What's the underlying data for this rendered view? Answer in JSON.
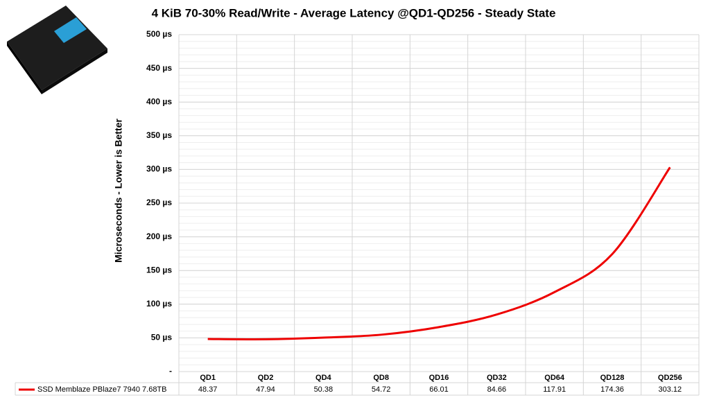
{
  "chart_data": {
    "type": "line",
    "title": "4 KiB 70-30% Read/Write - Average Latency @QD1-QD256 - Steady State",
    "y_label": "Microseconds  -  Lower is Better",
    "categories": [
      "QD1",
      "QD2",
      "QD4",
      "QD8",
      "QD16",
      "QD32",
      "QD64",
      "QD128",
      "QD256"
    ],
    "series": [
      {
        "name": "SSD Memblaze PBlaze7 7940 7.68TB",
        "color": "#ee0000",
        "values": [
          48.37,
          47.94,
          50.38,
          54.72,
          66.01,
          84.66,
          117.91,
          174.36,
          303.12
        ]
      }
    ],
    "ylim": [
      0,
      500
    ],
    "yticks": [
      {
        "value": 0,
        "label": "-"
      },
      {
        "value": 50,
        "label": "50 µs"
      },
      {
        "value": 100,
        "label": "100 µs"
      },
      {
        "value": 150,
        "label": "150 µs"
      },
      {
        "value": 200,
        "label": "200 µs"
      },
      {
        "value": 250,
        "label": "250 µs"
      },
      {
        "value": 300,
        "label": "300 µs"
      },
      {
        "value": 350,
        "label": "350 µs"
      },
      {
        "value": 400,
        "label": "400 µs"
      },
      {
        "value": 450,
        "label": "450 µs"
      },
      {
        "value": 500,
        "label": "500 µs"
      }
    ],
    "grid": true
  }
}
